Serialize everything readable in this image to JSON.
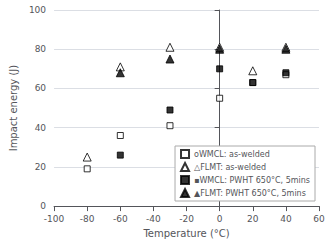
{
  "chart_data": {
    "type": "scatter",
    "xlabel": "Temperature (°C)",
    "ylabel": "Impact energy (J)",
    "xlim": [
      -100,
      60
    ],
    "ylim": [
      0,
      100
    ],
    "xticks": [
      -100,
      -80,
      -60,
      -40,
      -20,
      0,
      20,
      40,
      60
    ],
    "yticks": [
      0,
      20,
      40,
      60,
      80,
      100
    ],
    "grid": "y",
    "legend": "lower right",
    "series": [
      {
        "name": "oWMCL: as-welded",
        "marker": "square",
        "color": "#ffffff",
        "x": [
          -80,
          -60,
          -30,
          0,
          20,
          40
        ],
        "values": [
          19,
          36,
          41,
          55,
          63,
          67
        ]
      },
      {
        "name": "△FLMT: as-welded",
        "marker": "triangle",
        "color": "#ffffff",
        "x": [
          -80,
          -60,
          -30,
          0,
          20,
          40
        ],
        "values": [
          25,
          71,
          81,
          81,
          69,
          81
        ]
      },
      {
        "name": "▪WMCL: PWHT 650°C, 5mins",
        "marker": "square",
        "color": "#000000",
        "x": [
          -60,
          -30,
          0,
          20,
          40
        ],
        "values": [
          26,
          49,
          70,
          63,
          68
        ]
      },
      {
        "name": "▲FLMT: PWHT 650°C, 5mins",
        "marker": "triangle",
        "color": "#000000",
        "x": [
          -60,
          -30,
          0,
          40
        ],
        "values": [
          68,
          75,
          80,
          80
        ]
      }
    ]
  }
}
